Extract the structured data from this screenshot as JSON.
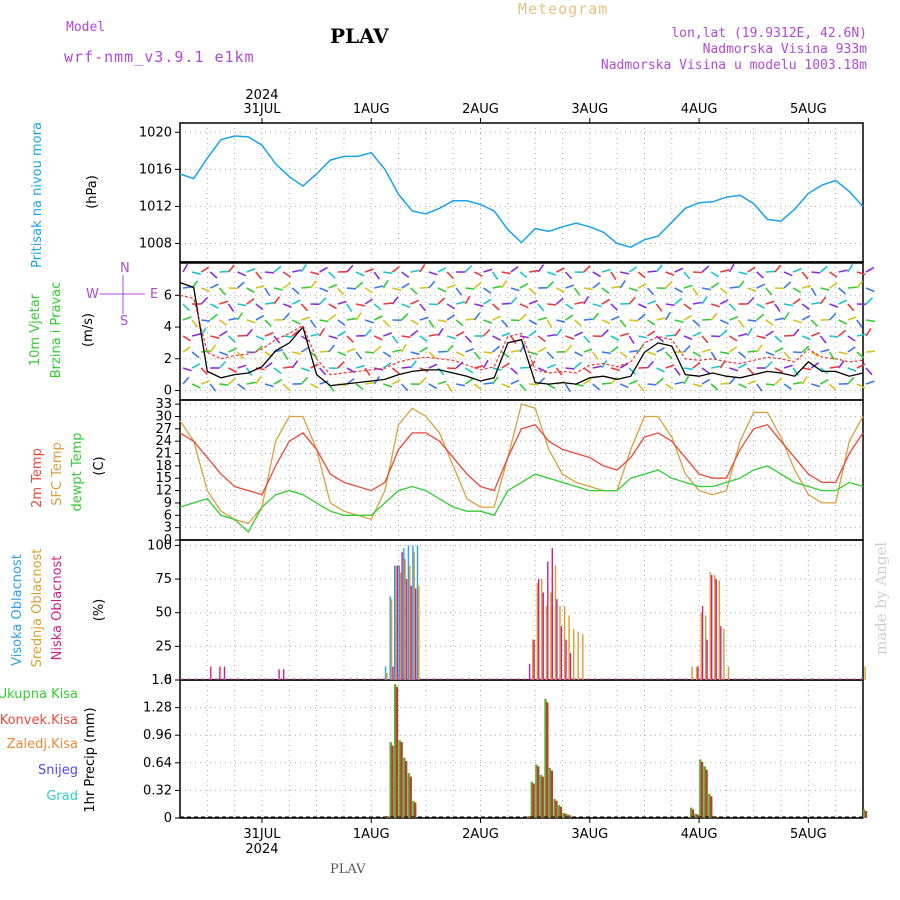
{
  "header": {
    "model_label": "Model",
    "model_name": "wrf-nmm_v3.9.1 e1km",
    "station": "PLAV",
    "product": "Meteogram",
    "coords": "lon,lat (19.9312E, 42.6N)",
    "elevation": "Nadmorska Visina 933m",
    "model_elevation": "Nadmorska Visina u modelu 1003.18m",
    "footer_station": "PLAV",
    "watermark": "made by Angel"
  },
  "colors": {
    "pressure": "#1aa3e8",
    "wind_speed": "#000000",
    "gust": "#e83a3a",
    "t2m": "#e84a3a",
    "tsfc": "#d8a040",
    "dewpt": "#33cc33",
    "cloud_high": "#2aa0e8",
    "cloud_mid": "#d8a030",
    "cloud_low": "#cc2288",
    "precip_total": "#66aa33",
    "precip_conv": "#aa4433"
  },
  "time_axis": {
    "year": "2024",
    "days": [
      "31JUL",
      "1AUG",
      "2AUG",
      "3AUG",
      "4AUG",
      "5AUG"
    ],
    "start": "2024-07-30 06:00",
    "end": "2024-08-05 12:00"
  },
  "chart_data": [
    {
      "type": "line",
      "panel": "pressure",
      "ylabel_left": "Pritisak na nivou mora",
      "ylabel_unit": "(hPa)",
      "yticks": [
        "1008",
        "1012",
        "1016",
        "1020"
      ],
      "ylim": [
        1006,
        1021
      ],
      "x_hours": [
        0,
        3,
        6,
        9,
        12,
        15,
        18,
        21,
        24,
        27,
        30,
        33,
        36,
        39,
        42,
        45,
        48,
        51,
        54,
        57,
        60,
        63,
        66,
        69,
        72,
        75,
        78,
        81,
        84,
        87,
        90,
        93,
        96,
        99,
        102,
        105,
        108,
        111,
        114,
        117,
        120,
        123,
        126,
        129,
        132,
        135,
        138,
        141,
        144,
        147,
        150
      ],
      "series": [
        {
          "values": [
            1015.5,
            1015,
            1017.2,
            1019.2,
            1019.6,
            1019.5,
            1018.6,
            1016.6,
            1015.2,
            1014.2,
            1015.5,
            1017,
            1017.4,
            1017.4,
            1017.8,
            1016,
            1013.3,
            1011.5,
            1011.2,
            1011.8,
            1012.6,
            1012.6,
            1012.2,
            1011.5,
            1009.5,
            1008.1,
            1009.6,
            1009.3,
            1009.8,
            1010.2,
            1009.8,
            1009.2,
            1008,
            1007.6,
            1008.4,
            1008.8,
            1010.3,
            1011.8,
            1012.4,
            1012.5,
            1013,
            1013.2,
            1012.3,
            1010.6,
            1010.4,
            1011.7,
            1013.4,
            1014.3,
            1014.8,
            1013.6,
            1012
          ]
        }
      ]
    },
    {
      "type": "line",
      "panel": "wind",
      "ylabel_left": "10m Vjetar Brzina i Pravac",
      "ylabel_unit": "(m/s)",
      "compass": [
        "N",
        "S",
        "E",
        "W"
      ],
      "yticks": [
        "0",
        "2",
        "4",
        "6"
      ],
      "ylim": [
        -0.6,
        8.1
      ],
      "x_hours": [
        0,
        3,
        6,
        9,
        12,
        15,
        18,
        21,
        24,
        27,
        30,
        33,
        36,
        39,
        42,
        45,
        48,
        51,
        54,
        57,
        60,
        63,
        66,
        69,
        72,
        75,
        78,
        81,
        84,
        87,
        90,
        93,
        96,
        99,
        102,
        105,
        108,
        111,
        114,
        117,
        120,
        123,
        126,
        129,
        132,
        135,
        138,
        141,
        144,
        147,
        150
      ],
      "series": [
        {
          "values": [
            6.8,
            6.5,
            1.2,
            0.8,
            1.0,
            1.1,
            1.5,
            2.5,
            3.0,
            4.0,
            1.0,
            0.3,
            0.4,
            0.5,
            0.6,
            0.7,
            1.0,
            1.2,
            1.3,
            1.3,
            1.1,
            0.9,
            0.6,
            0.8,
            3.0,
            3.2,
            0.5,
            0.4,
            0.5,
            0.4,
            0.8,
            0.9,
            0.7,
            0.9,
            2.4,
            3.0,
            2.8,
            1.0,
            0.9,
            1.1,
            0.9,
            0.8,
            1.0,
            1.2,
            1.1,
            0.9,
            1.8,
            1.2,
            1.2,
            0.9,
            1.1
          ]
        },
        {
          "values": [
            6.0,
            5.8,
            2.4,
            2.0,
            2.2,
            2.3,
            2.6,
            3.2,
            3.6,
            4.1,
            2.0,
            1.0,
            1.1,
            1.2,
            1.3,
            1.4,
            1.8,
            2.0,
            2.1,
            2.0,
            1.9,
            1.6,
            1.3,
            1.5,
            3.4,
            3.6,
            1.3,
            1.1,
            1.2,
            1.1,
            1.6,
            1.7,
            1.5,
            1.8,
            3.0,
            3.4,
            3.2,
            2.0,
            1.9,
            2.0,
            1.8,
            1.7,
            1.9,
            2.1,
            2.0,
            1.8,
            2.6,
            2.1,
            2.0,
            1.8,
            1.9
          ]
        }
      ]
    },
    {
      "type": "line",
      "panel": "temperature",
      "ylabel_left": "2m Temp",
      "ylabel_mid": "SFC Temp",
      "ylabel_right": "dewpt Temp",
      "ylabel_unit": "(C)",
      "yticks": [
        "0",
        "3",
        "6",
        "9",
        "12",
        "15",
        "18",
        "21",
        "24",
        "27",
        "30",
        "33"
      ],
      "ylim": [
        0,
        34
      ],
      "x_hours": [
        0,
        3,
        6,
        9,
        12,
        15,
        18,
        21,
        24,
        27,
        30,
        33,
        36,
        39,
        42,
        45,
        48,
        51,
        54,
        57,
        60,
        63,
        66,
        69,
        72,
        75,
        78,
        81,
        84,
        87,
        90,
        93,
        96,
        99,
        102,
        105,
        108,
        111,
        114,
        117,
        120,
        123,
        126,
        129,
        132,
        135,
        138,
        141,
        144,
        147,
        150
      ],
      "series": [
        {
          "values": [
            26,
            24,
            20,
            16,
            13,
            12,
            11,
            18,
            24,
            26,
            22,
            16,
            14,
            13,
            12,
            14,
            22,
            26,
            26,
            24,
            20,
            16,
            13,
            12,
            20,
            27,
            28,
            24,
            22,
            21,
            20,
            18,
            17,
            20,
            25,
            26,
            24,
            20,
            16,
            15,
            15,
            22,
            27,
            28,
            24,
            20,
            16,
            14,
            14,
            21,
            26
          ]
        },
        {
          "values": [
            29,
            24,
            12,
            7,
            5,
            4,
            8,
            24,
            30,
            30,
            22,
            9,
            7,
            6,
            5,
            12,
            28,
            32,
            30,
            26,
            18,
            10,
            8,
            8,
            20,
            33,
            32,
            22,
            16,
            14,
            13,
            12,
            12,
            22,
            30,
            30,
            25,
            16,
            12,
            11,
            12,
            24,
            31,
            31,
            25,
            17,
            11,
            9,
            9,
            24,
            30
          ]
        },
        {
          "values": [
            8,
            9,
            10,
            6,
            5,
            2,
            8,
            11,
            12,
            11,
            9,
            7,
            6,
            6,
            6,
            9,
            12,
            13,
            12,
            10,
            8,
            7,
            7,
            6,
            12,
            14,
            16,
            15,
            14,
            13,
            12,
            12,
            12,
            15,
            16,
            17,
            15,
            14,
            13,
            13,
            14,
            15,
            17,
            18,
            16,
            14,
            13,
            12,
            12,
            14,
            13
          ]
        }
      ]
    },
    {
      "type": "bar",
      "panel": "cloud",
      "ylabel_left": "Visoka Oblacnost",
      "ylabel_mid": "Srednja Oblacnost",
      "ylabel_right": "Niska Oblacnost",
      "ylabel_unit": "(%)",
      "yticks": [
        "0",
        "25",
        "50",
        "75",
        "100"
      ],
      "ylim": [
        0,
        104
      ],
      "series": [
        {
          "name": "Visoka Oblacnost",
          "x_hours": [
            45,
            46,
            47,
            48,
            49,
            50,
            51,
            52,
            53,
            54,
            55,
            56,
            57
          ],
          "values": [
            10,
            62,
            85,
            85,
            98,
            100,
            100,
            100,
            0,
            0,
            0,
            0,
            0
          ]
        },
        {
          "name": "Srednja Oblacnost",
          "x_hours": [
            45,
            46,
            47,
            48,
            49,
            50,
            51,
            52,
            77,
            78,
            79,
            80,
            81,
            82,
            83,
            84,
            85,
            86,
            87,
            88,
            112,
            113,
            114,
            115,
            116,
            117,
            118,
            119,
            120,
            150
          ],
          "values": [
            5,
            60,
            85,
            80,
            90,
            85,
            95,
            70,
            30,
            72,
            75,
            55,
            65,
            85,
            55,
            55,
            48,
            38,
            36,
            34,
            10,
            10,
            50,
            48,
            80,
            78,
            74,
            38,
            10,
            10
          ]
        },
        {
          "name": "Niska Oblacnost",
          "x_hours": [
            6,
            8,
            9,
            21,
            22,
            46,
            47,
            48,
            49,
            50,
            51,
            76,
            77,
            78,
            79,
            80,
            81,
            82,
            83,
            84,
            85,
            113,
            114,
            115,
            116,
            117,
            118
          ],
          "values": [
            10,
            10,
            10,
            8,
            8,
            10,
            85,
            95,
            75,
            70,
            68,
            12,
            30,
            75,
            65,
            88,
            98,
            60,
            40,
            30,
            20,
            10,
            55,
            30,
            78,
            75,
            40
          ]
        }
      ]
    },
    {
      "type": "bar",
      "panel": "precip",
      "ylabel_left": "Ukupna Kisa",
      "ylabel_l2": "Konvek.Kisa",
      "ylabel_l3": "Zaledj.Kisa",
      "ylabel_l4": "Snijeg",
      "ylabel_l5": "Grad",
      "ylabel_unit": "1hr Precip (mm)",
      "yticks": [
        "0",
        "0.32",
        "0.64",
        "0.96",
        "1.28",
        "1.6"
      ],
      "ylim": [
        0,
        1.6
      ],
      "series": [
        {
          "name": "Ukupna Kisa",
          "x_hours": [
            45,
            46,
            47,
            48,
            49,
            50,
            51,
            76,
            77,
            78,
            79,
            80,
            81,
            82,
            83,
            84,
            85,
            112,
            113,
            114,
            115,
            116,
            117,
            150
          ],
          "values": [
            0.02,
            0.88,
            1.55,
            0.9,
            0.7,
            0.52,
            0.2,
            0.02,
            0.42,
            0.62,
            0.5,
            1.38,
            0.58,
            0.22,
            0.15,
            0.06,
            0.04,
            0.12,
            0.05,
            0.68,
            0.6,
            0.28,
            0.02,
            0.1
          ]
        },
        {
          "name": "Konvek.Kisa",
          "x_hours": [
            45,
            46,
            47,
            48,
            49,
            50,
            51,
            76,
            77,
            78,
            79,
            80,
            81,
            82,
            83,
            84,
            85,
            112,
            113,
            114,
            115,
            116,
            117,
            150
          ],
          "values": [
            0.02,
            0.84,
            1.52,
            0.88,
            0.66,
            0.48,
            0.18,
            0.02,
            0.4,
            0.6,
            0.48,
            1.34,
            0.55,
            0.2,
            0.13,
            0.05,
            0.03,
            0.1,
            0.04,
            0.65,
            0.56,
            0.25,
            0.02,
            0.08
          ]
        }
      ]
    }
  ]
}
